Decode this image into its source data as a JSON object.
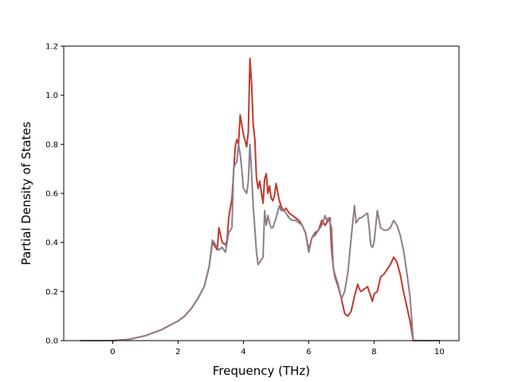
{
  "chart_data": {
    "type": "line",
    "title": "",
    "xlabel": "Frequency (THz)",
    "ylabel": "Partial Density of States",
    "xlim": [
      -1.5,
      10.6
    ],
    "ylim": [
      0.0,
      1.2
    ],
    "xticks": [
      0,
      2,
      4,
      6,
      8,
      10
    ],
    "yticks": [
      0.0,
      0.2,
      0.4,
      0.6,
      0.8,
      1.0,
      1.2
    ],
    "xtick_labels": [
      "0",
      "2",
      "4",
      "6",
      "8",
      "10"
    ],
    "ytick_labels": [
      "0.0",
      "0.2",
      "0.4",
      "0.6",
      "0.8",
      "1.0",
      "1.2"
    ],
    "grid": false,
    "legend": "none",
    "series": [
      {
        "color": "#c0392b",
        "x": [
          -1.0,
          -0.5,
          0.0,
          0.5,
          1.0,
          1.5,
          2.0,
          2.2,
          2.4,
          2.6,
          2.8,
          2.95,
          3.05,
          3.15,
          3.2,
          3.25,
          3.35,
          3.45,
          3.5,
          3.55,
          3.65,
          3.75,
          3.8,
          3.85,
          3.9,
          4.0,
          4.1,
          4.15,
          4.2,
          4.25,
          4.3,
          4.35,
          4.4,
          4.45,
          4.5,
          4.6,
          4.65,
          4.7,
          4.75,
          4.8,
          4.85,
          4.9,
          4.95,
          5.0,
          5.1,
          5.2,
          5.25,
          5.3,
          5.4,
          5.5,
          5.6,
          5.7,
          5.8,
          5.9,
          6.0,
          6.1,
          6.2,
          6.3,
          6.4,
          6.5,
          6.6,
          6.65,
          6.7,
          6.75,
          6.8,
          6.9,
          7.0,
          7.1,
          7.2,
          7.3,
          7.4,
          7.5,
          7.55,
          7.6,
          7.7,
          7.8,
          7.9,
          7.95,
          8.0,
          8.1,
          8.2,
          8.3,
          8.4,
          8.5,
          8.6,
          8.7,
          8.8,
          8.9,
          9.0,
          9.1,
          9.2,
          9.5,
          10.0
        ],
        "y": [
          0.0,
          0.0,
          0.0,
          0.005,
          0.02,
          0.045,
          0.08,
          0.1,
          0.13,
          0.17,
          0.22,
          0.3,
          0.4,
          0.38,
          0.37,
          0.46,
          0.4,
          0.39,
          0.41,
          0.5,
          0.58,
          0.79,
          0.82,
          0.8,
          0.92,
          0.84,
          0.79,
          0.85,
          1.15,
          1.05,
          0.88,
          0.82,
          0.66,
          0.62,
          0.65,
          0.56,
          0.66,
          0.68,
          0.6,
          0.63,
          0.58,
          0.57,
          0.59,
          0.64,
          0.57,
          0.53,
          0.53,
          0.54,
          0.52,
          0.51,
          0.5,
          0.49,
          0.47,
          0.44,
          0.37,
          0.42,
          0.44,
          0.45,
          0.49,
          0.47,
          0.49,
          0.5,
          0.37,
          0.3,
          0.26,
          0.22,
          0.17,
          0.11,
          0.1,
          0.12,
          0.18,
          0.23,
          0.21,
          0.2,
          0.21,
          0.22,
          0.18,
          0.16,
          0.19,
          0.2,
          0.26,
          0.27,
          0.29,
          0.31,
          0.34,
          0.32,
          0.27,
          0.2,
          0.14,
          0.08,
          0.0,
          0.0,
          0.0
        ]
      },
      {
        "color": "#8e7e8c",
        "x": [
          -1.0,
          -0.5,
          0.0,
          0.5,
          1.0,
          1.5,
          2.0,
          2.2,
          2.4,
          2.6,
          2.8,
          2.95,
          3.05,
          3.15,
          3.25,
          3.35,
          3.45,
          3.55,
          3.6,
          3.65,
          3.7,
          3.75,
          3.8,
          3.85,
          3.9,
          3.95,
          4.0,
          4.1,
          4.15,
          4.2,
          4.25,
          4.3,
          4.4,
          4.45,
          4.5,
          4.6,
          4.65,
          4.7,
          4.75,
          4.8,
          4.85,
          4.9,
          5.0,
          5.1,
          5.15,
          5.2,
          5.3,
          5.4,
          5.5,
          5.6,
          5.7,
          5.8,
          5.9,
          6.0,
          6.1,
          6.2,
          6.3,
          6.4,
          6.5,
          6.55,
          6.6,
          6.7,
          6.75,
          6.8,
          6.9,
          7.0,
          7.1,
          7.2,
          7.3,
          7.4,
          7.45,
          7.5,
          7.55,
          7.6,
          7.7,
          7.8,
          7.85,
          7.9,
          7.95,
          8.0,
          8.1,
          8.2,
          8.3,
          8.4,
          8.5,
          8.6,
          8.7,
          8.8,
          8.9,
          9.0,
          9.1,
          9.2,
          9.5,
          10.0
        ],
        "y": [
          0.0,
          0.0,
          0.0,
          0.005,
          0.02,
          0.045,
          0.08,
          0.1,
          0.13,
          0.17,
          0.22,
          0.3,
          0.41,
          0.39,
          0.37,
          0.38,
          0.36,
          0.44,
          0.45,
          0.46,
          0.7,
          0.72,
          0.73,
          0.8,
          0.76,
          0.7,
          0.62,
          0.6,
          0.65,
          0.8,
          0.68,
          0.55,
          0.36,
          0.31,
          0.32,
          0.34,
          0.53,
          0.47,
          0.51,
          0.48,
          0.46,
          0.46,
          0.5,
          0.55,
          0.53,
          0.54,
          0.52,
          0.5,
          0.49,
          0.49,
          0.48,
          0.47,
          0.44,
          0.36,
          0.42,
          0.43,
          0.45,
          0.47,
          0.51,
          0.49,
          0.5,
          0.46,
          0.3,
          0.27,
          0.23,
          0.17,
          0.2,
          0.28,
          0.42,
          0.55,
          0.48,
          0.49,
          0.5,
          0.5,
          0.51,
          0.52,
          0.46,
          0.39,
          0.38,
          0.4,
          0.53,
          0.46,
          0.45,
          0.45,
          0.46,
          0.49,
          0.47,
          0.43,
          0.37,
          0.28,
          0.18,
          0.0,
          0.0,
          0.0
        ]
      }
    ]
  }
}
